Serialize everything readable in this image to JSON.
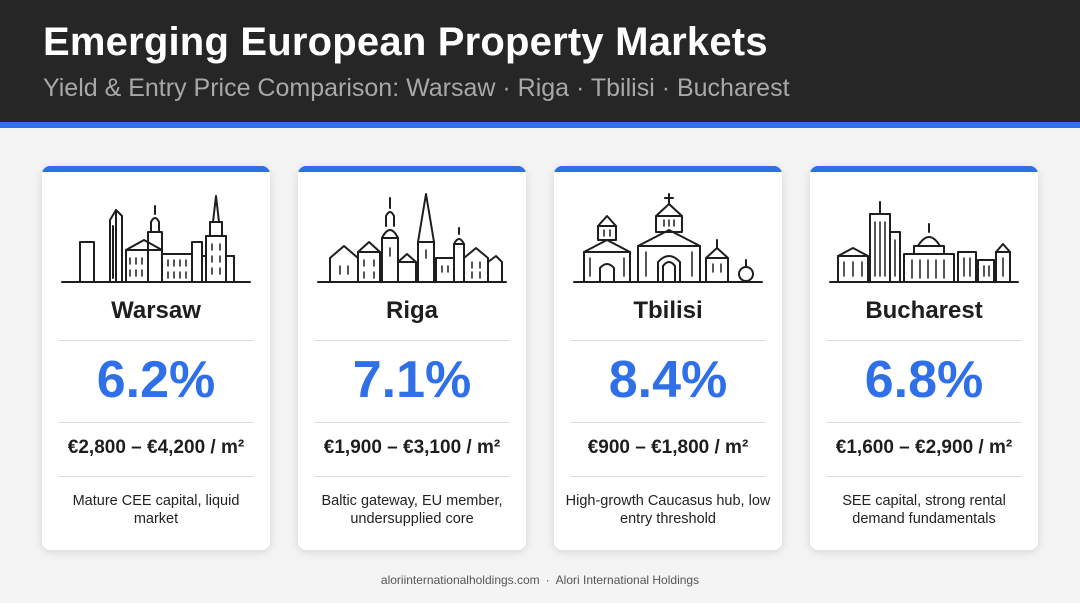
{
  "header": {
    "title": "Emerging European Property Markets",
    "subtitle": "Yield & Entry Price Comparison: Warsaw · Riga · Tbilisi · Bucharest",
    "accent_color": "#2f6fe8",
    "background_color": "#262626"
  },
  "cards": [
    {
      "city": "Warsaw",
      "icon": "warsaw-skyline-icon",
      "yield": "6.2%",
      "price_range": "€2,800 – €4,200 / m²",
      "description": "Mature CEE capital, liquid market"
    },
    {
      "city": "Riga",
      "icon": "riga-skyline-icon",
      "yield": "7.1%",
      "price_range": "€1,900 – €3,100 / m²",
      "description": "Baltic gateway, EU member, undersupplied core"
    },
    {
      "city": "Tbilisi",
      "icon": "tbilisi-skyline-icon",
      "yield": "8.4%",
      "price_range": "€900 – €1,800 / m²",
      "description": "High-growth Caucasus hub, low entry threshold"
    },
    {
      "city": "Bucharest",
      "icon": "bucharest-skyline-icon",
      "yield": "6.8%",
      "price_range": "€1,600 – €2,900 / m²",
      "description": "SEE capital, strong rental demand fundamentals"
    }
  ],
  "footer": {
    "website": "aloriinternationalholdings.com",
    "separator": "·",
    "company": "Alori International Holdings"
  }
}
